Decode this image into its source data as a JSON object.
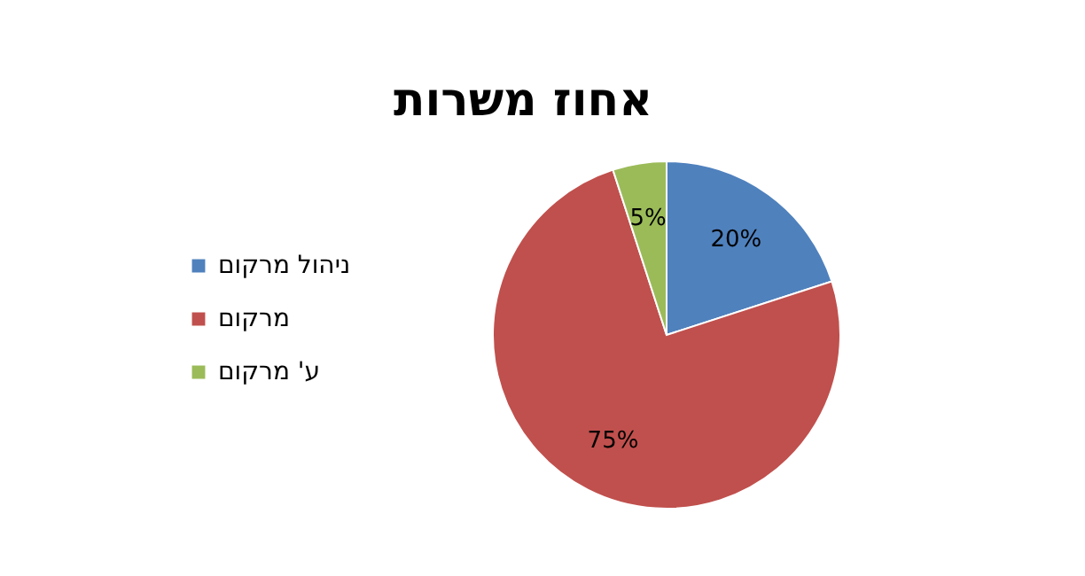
{
  "chart_data": {
    "type": "pie",
    "title": "אחוז משרות",
    "categories": [
      "ניהול מרקום",
      "מרקום",
      "ע' מרקום"
    ],
    "values": [
      20,
      75,
      5
    ],
    "colors": [
      "#4f81bd",
      "#c0504d",
      "#9bbb59"
    ],
    "value_labels": [
      "20%",
      "75%",
      "5%"
    ],
    "legend": "left"
  }
}
